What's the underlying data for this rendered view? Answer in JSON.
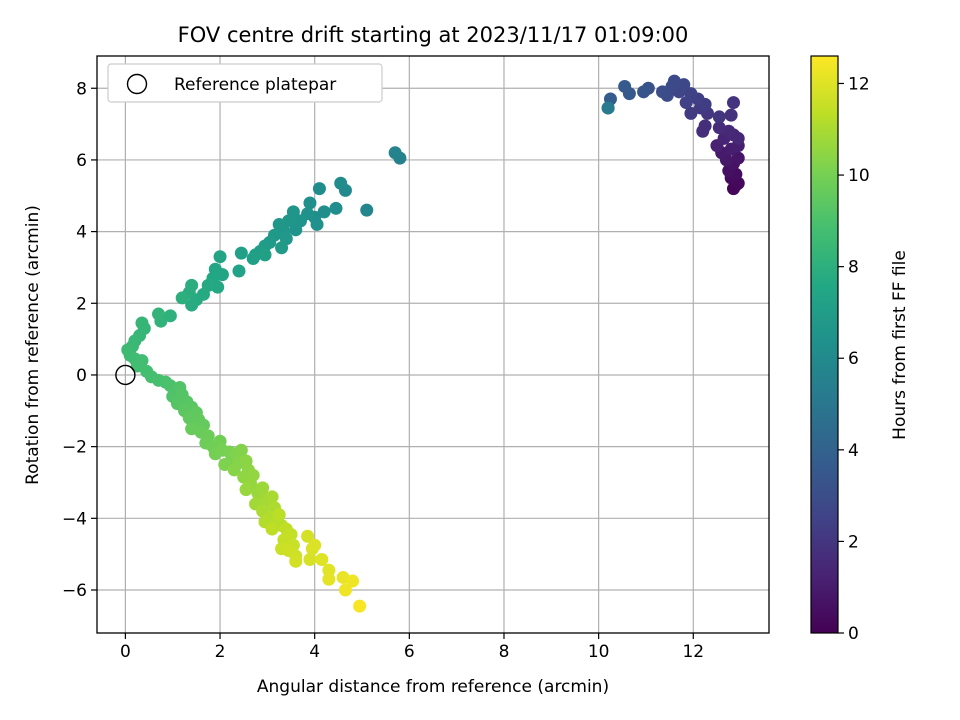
{
  "chart_data": {
    "type": "scatter",
    "title": "FOV centre drift starting at 2023/11/17 01:09:00",
    "xlabel": "Angular distance from reference (arcmin)",
    "ylabel": "Rotation from reference (arcmin)",
    "xlim": [
      -0.6,
      13.6
    ],
    "ylim": [
      -7.2,
      8.9
    ],
    "xticks": [
      0,
      2,
      4,
      6,
      8,
      10,
      12
    ],
    "yticks": [
      -6,
      -4,
      -2,
      0,
      2,
      4,
      6,
      8
    ],
    "grid": true,
    "legend": {
      "placement": "top-left",
      "entries": [
        "Reference platepar"
      ]
    },
    "reference_point": {
      "x": 0,
      "y": 0
    },
    "colorbar": {
      "label": "Hours from first FF file",
      "colormap": "viridis",
      "range": [
        0,
        12.6
      ],
      "ticks": [
        0,
        2,
        4,
        6,
        8,
        10,
        12
      ]
    },
    "points": [
      {
        "x": 12.9,
        "y": 5.3,
        "c": 0.1
      },
      {
        "x": 12.85,
        "y": 5.2,
        "c": 0.2
      },
      {
        "x": 12.95,
        "y": 5.35,
        "c": 0.25
      },
      {
        "x": 12.8,
        "y": 5.5,
        "c": 0.35
      },
      {
        "x": 12.9,
        "y": 5.6,
        "c": 0.45
      },
      {
        "x": 12.75,
        "y": 5.7,
        "c": 0.55
      },
      {
        "x": 12.85,
        "y": 5.9,
        "c": 0.65
      },
      {
        "x": 12.95,
        "y": 6.05,
        "c": 0.75
      },
      {
        "x": 12.7,
        "y": 6.0,
        "c": 0.85
      },
      {
        "x": 12.6,
        "y": 6.2,
        "c": 0.95
      },
      {
        "x": 12.8,
        "y": 6.3,
        "c": 1.05
      },
      {
        "x": 12.95,
        "y": 6.4,
        "c": 1.1
      },
      {
        "x": 12.5,
        "y": 6.4,
        "c": 1.2
      },
      {
        "x": 12.65,
        "y": 6.6,
        "c": 1.3
      },
      {
        "x": 12.85,
        "y": 6.7,
        "c": 1.4
      },
      {
        "x": 12.95,
        "y": 6.6,
        "c": 1.45
      },
      {
        "x": 12.75,
        "y": 6.8,
        "c": 1.55
      },
      {
        "x": 12.55,
        "y": 6.9,
        "c": 1.6
      },
      {
        "x": 12.2,
        "y": 6.8,
        "c": 1.7
      },
      {
        "x": 12.25,
        "y": 6.95,
        "c": 1.75
      },
      {
        "x": 12.8,
        "y": 7.25,
        "c": 1.85
      },
      {
        "x": 12.85,
        "y": 7.6,
        "c": 1.9
      },
      {
        "x": 12.55,
        "y": 7.2,
        "c": 2.0
      },
      {
        "x": 12.3,
        "y": 7.3,
        "c": 2.05
      },
      {
        "x": 12.15,
        "y": 7.45,
        "c": 2.15
      },
      {
        "x": 11.95,
        "y": 7.3,
        "c": 2.2
      },
      {
        "x": 12.25,
        "y": 7.55,
        "c": 2.3
      },
      {
        "x": 12.1,
        "y": 7.7,
        "c": 2.35
      },
      {
        "x": 11.85,
        "y": 7.6,
        "c": 2.45
      },
      {
        "x": 11.95,
        "y": 7.85,
        "c": 2.5
      },
      {
        "x": 11.7,
        "y": 7.9,
        "c": 2.6
      },
      {
        "x": 11.8,
        "y": 8.1,
        "c": 2.7
      },
      {
        "x": 11.55,
        "y": 8.05,
        "c": 2.8
      },
      {
        "x": 11.6,
        "y": 8.2,
        "c": 2.85
      },
      {
        "x": 11.45,
        "y": 7.8,
        "c": 2.95
      },
      {
        "x": 11.35,
        "y": 7.9,
        "c": 3.05
      },
      {
        "x": 11.05,
        "y": 8.0,
        "c": 3.2
      },
      {
        "x": 10.95,
        "y": 7.9,
        "c": 3.35
      },
      {
        "x": 10.65,
        "y": 7.85,
        "c": 3.5
      },
      {
        "x": 10.55,
        "y": 8.05,
        "c": 3.6
      },
      {
        "x": 10.25,
        "y": 7.7,
        "c": 3.75
      },
      {
        "x": 10.2,
        "y": 7.45,
        "c": 4.0
      },
      {
        "x": 10.2,
        "y": 7.45,
        "c": 5.2
      },
      {
        "x": 5.8,
        "y": 6.05,
        "c": 5.5
      },
      {
        "x": 5.7,
        "y": 6.2,
        "c": 5.6
      },
      {
        "x": 5.1,
        "y": 4.6,
        "c": 5.8
      },
      {
        "x": 4.65,
        "y": 5.15,
        "c": 6.0
      },
      {
        "x": 4.55,
        "y": 5.35,
        "c": 6.05
      },
      {
        "x": 4.1,
        "y": 5.2,
        "c": 6.1
      },
      {
        "x": 4.45,
        "y": 4.65,
        "c": 6.15
      },
      {
        "x": 4.2,
        "y": 4.55,
        "c": 6.2
      },
      {
        "x": 4.0,
        "y": 4.4,
        "c": 6.25
      },
      {
        "x": 3.9,
        "y": 4.8,
        "c": 6.3
      },
      {
        "x": 4.05,
        "y": 4.2,
        "c": 6.35
      },
      {
        "x": 3.85,
        "y": 4.5,
        "c": 6.4
      },
      {
        "x": 3.7,
        "y": 4.3,
        "c": 6.45
      },
      {
        "x": 3.6,
        "y": 4.05,
        "c": 6.5
      },
      {
        "x": 3.55,
        "y": 4.55,
        "c": 6.55
      },
      {
        "x": 3.45,
        "y": 4.3,
        "c": 6.6
      },
      {
        "x": 3.35,
        "y": 4.0,
        "c": 6.65
      },
      {
        "x": 3.25,
        "y": 4.2,
        "c": 6.7
      },
      {
        "x": 3.4,
        "y": 3.8,
        "c": 6.75
      },
      {
        "x": 3.15,
        "y": 3.9,
        "c": 6.8
      },
      {
        "x": 3.05,
        "y": 3.7,
        "c": 6.85
      },
      {
        "x": 3.3,
        "y": 3.55,
        "c": 6.9
      },
      {
        "x": 2.95,
        "y": 3.6,
        "c": 6.95
      },
      {
        "x": 2.85,
        "y": 3.45,
        "c": 7.0
      },
      {
        "x": 2.75,
        "y": 3.35,
        "c": 7.05
      },
      {
        "x": 2.7,
        "y": 3.25,
        "c": 7.1
      },
      {
        "x": 2.45,
        "y": 3.4,
        "c": 7.15
      },
      {
        "x": 2.95,
        "y": 3.35,
        "c": 7.2
      },
      {
        "x": 2.4,
        "y": 2.9,
        "c": 7.3
      },
      {
        "x": 2.0,
        "y": 3.3,
        "c": 7.4
      },
      {
        "x": 2.05,
        "y": 2.8,
        "c": 7.45
      },
      {
        "x": 1.9,
        "y": 2.95,
        "c": 7.5
      },
      {
        "x": 1.85,
        "y": 2.7,
        "c": 7.55
      },
      {
        "x": 1.95,
        "y": 2.45,
        "c": 7.6
      },
      {
        "x": 1.75,
        "y": 2.5,
        "c": 7.65
      },
      {
        "x": 1.65,
        "y": 2.25,
        "c": 7.7
      },
      {
        "x": 1.5,
        "y": 2.1,
        "c": 7.75
      },
      {
        "x": 1.4,
        "y": 1.95,
        "c": 7.8
      },
      {
        "x": 1.35,
        "y": 2.3,
        "c": 7.85
      },
      {
        "x": 1.4,
        "y": 2.5,
        "c": 7.9
      },
      {
        "x": 1.2,
        "y": 2.15,
        "c": 7.95
      },
      {
        "x": 0.95,
        "y": 1.65,
        "c": 8.05
      },
      {
        "x": 0.75,
        "y": 1.5,
        "c": 8.15
      },
      {
        "x": 0.7,
        "y": 1.7,
        "c": 8.2
      },
      {
        "x": 0.4,
        "y": 1.3,
        "c": 8.3
      },
      {
        "x": 0.35,
        "y": 1.45,
        "c": 8.35
      },
      {
        "x": 0.3,
        "y": 1.1,
        "c": 8.4
      },
      {
        "x": 0.2,
        "y": 0.95,
        "c": 8.45
      },
      {
        "x": 0.15,
        "y": 0.8,
        "c": 8.5
      },
      {
        "x": 0.05,
        "y": 0.7,
        "c": 8.55
      },
      {
        "x": 0.1,
        "y": 0.55,
        "c": 8.6
      },
      {
        "x": 0.2,
        "y": 0.45,
        "c": 8.65
      },
      {
        "x": 0.35,
        "y": 0.4,
        "c": 8.7
      },
      {
        "x": 0.25,
        "y": 0.25,
        "c": 8.75
      },
      {
        "x": 0.45,
        "y": 0.1,
        "c": 8.8
      },
      {
        "x": 0.55,
        "y": -0.05,
        "c": 8.85
      },
      {
        "x": 0.7,
        "y": -0.15,
        "c": 8.9
      },
      {
        "x": 0.85,
        "y": -0.2,
        "c": 8.95
      },
      {
        "x": 0.95,
        "y": -0.3,
        "c": 9.0
      },
      {
        "x": 1.05,
        "y": -0.45,
        "c": 9.05
      },
      {
        "x": 1.0,
        "y": -0.6,
        "c": 9.1
      },
      {
        "x": 1.15,
        "y": -0.35,
        "c": 9.15
      },
      {
        "x": 1.2,
        "y": -0.55,
        "c": 9.2
      },
      {
        "x": 1.1,
        "y": -0.8,
        "c": 9.25
      },
      {
        "x": 1.3,
        "y": -0.75,
        "c": 9.3
      },
      {
        "x": 1.4,
        "y": -0.9,
        "c": 9.35
      },
      {
        "x": 1.25,
        "y": -1.0,
        "c": 9.4
      },
      {
        "x": 1.5,
        "y": -1.05,
        "c": 9.45
      },
      {
        "x": 1.35,
        "y": -1.2,
        "c": 9.5
      },
      {
        "x": 1.55,
        "y": -1.25,
        "c": 9.55
      },
      {
        "x": 1.65,
        "y": -1.4,
        "c": 9.6
      },
      {
        "x": 1.4,
        "y": -1.5,
        "c": 9.65
      },
      {
        "x": 1.6,
        "y": -1.6,
        "c": 9.7
      },
      {
        "x": 1.75,
        "y": -1.7,
        "c": 9.75
      },
      {
        "x": 1.7,
        "y": -1.9,
        "c": 9.8
      },
      {
        "x": 1.85,
        "y": -2.0,
        "c": 9.85
      },
      {
        "x": 2.0,
        "y": -1.85,
        "c": 9.9
      },
      {
        "x": 1.9,
        "y": -2.2,
        "c": 9.95
      },
      {
        "x": 2.05,
        "y": -2.1,
        "c": 10.0
      },
      {
        "x": 2.2,
        "y": -2.15,
        "c": 10.05
      },
      {
        "x": 2.25,
        "y": -2.35,
        "c": 10.1
      },
      {
        "x": 2.1,
        "y": -2.5,
        "c": 10.15
      },
      {
        "x": 2.35,
        "y": -2.2,
        "c": 10.2
      },
      {
        "x": 2.45,
        "y": -2.1,
        "c": 10.25
      },
      {
        "x": 2.4,
        "y": -2.45,
        "c": 10.3
      },
      {
        "x": 2.3,
        "y": -2.65,
        "c": 10.35
      },
      {
        "x": 2.55,
        "y": -2.4,
        "c": 10.4
      },
      {
        "x": 2.6,
        "y": -2.65,
        "c": 10.45
      },
      {
        "x": 2.5,
        "y": -2.85,
        "c": 10.5
      },
      {
        "x": 2.7,
        "y": -2.8,
        "c": 10.55
      },
      {
        "x": 2.65,
        "y": -3.05,
        "c": 10.6
      },
      {
        "x": 2.55,
        "y": -3.2,
        "c": 10.65
      },
      {
        "x": 2.8,
        "y": -3.3,
        "c": 10.7
      },
      {
        "x": 2.9,
        "y": -3.15,
        "c": 10.75
      },
      {
        "x": 2.95,
        "y": -3.45,
        "c": 10.8
      },
      {
        "x": 2.75,
        "y": -3.6,
        "c": 10.85
      },
      {
        "x": 3.0,
        "y": -3.55,
        "c": 10.9
      },
      {
        "x": 3.1,
        "y": -3.4,
        "c": 10.95
      },
      {
        "x": 2.9,
        "y": -3.8,
        "c": 11.0
      },
      {
        "x": 3.15,
        "y": -3.7,
        "c": 11.05
      },
      {
        "x": 3.05,
        "y": -4.0,
        "c": 11.1
      },
      {
        "x": 2.95,
        "y": -4.1,
        "c": 11.15
      },
      {
        "x": 3.2,
        "y": -4.05,
        "c": 11.2
      },
      {
        "x": 3.3,
        "y": -4.2,
        "c": 11.25
      },
      {
        "x": 3.25,
        "y": -3.9,
        "c": 11.3
      },
      {
        "x": 3.1,
        "y": -4.3,
        "c": 11.35
      },
      {
        "x": 3.4,
        "y": -4.3,
        "c": 11.4
      },
      {
        "x": 3.5,
        "y": -4.45,
        "c": 11.45
      },
      {
        "x": 3.35,
        "y": -4.6,
        "c": 11.5
      },
      {
        "x": 3.55,
        "y": -4.75,
        "c": 11.55
      },
      {
        "x": 3.3,
        "y": -4.85,
        "c": 11.6
      },
      {
        "x": 3.45,
        "y": -4.9,
        "c": 11.65
      },
      {
        "x": 3.6,
        "y": -5.05,
        "c": 11.7
      },
      {
        "x": 3.6,
        "y": -5.2,
        "c": 11.75
      },
      {
        "x": 3.85,
        "y": -4.5,
        "c": 11.8
      },
      {
        "x": 3.9,
        "y": -5.15,
        "c": 11.85
      },
      {
        "x": 3.95,
        "y": -4.85,
        "c": 11.9
      },
      {
        "x": 4.0,
        "y": -4.75,
        "c": 11.95
      },
      {
        "x": 4.15,
        "y": -5.15,
        "c": 12.0
      },
      {
        "x": 4.3,
        "y": -5.45,
        "c": 12.05
      },
      {
        "x": 4.3,
        "y": -5.7,
        "c": 12.1
      },
      {
        "x": 4.6,
        "y": -5.65,
        "c": 12.2
      },
      {
        "x": 4.8,
        "y": -5.75,
        "c": 12.3
      },
      {
        "x": 4.65,
        "y": -6.0,
        "c": 12.35
      },
      {
        "x": 4.95,
        "y": -6.45,
        "c": 12.5
      }
    ]
  }
}
